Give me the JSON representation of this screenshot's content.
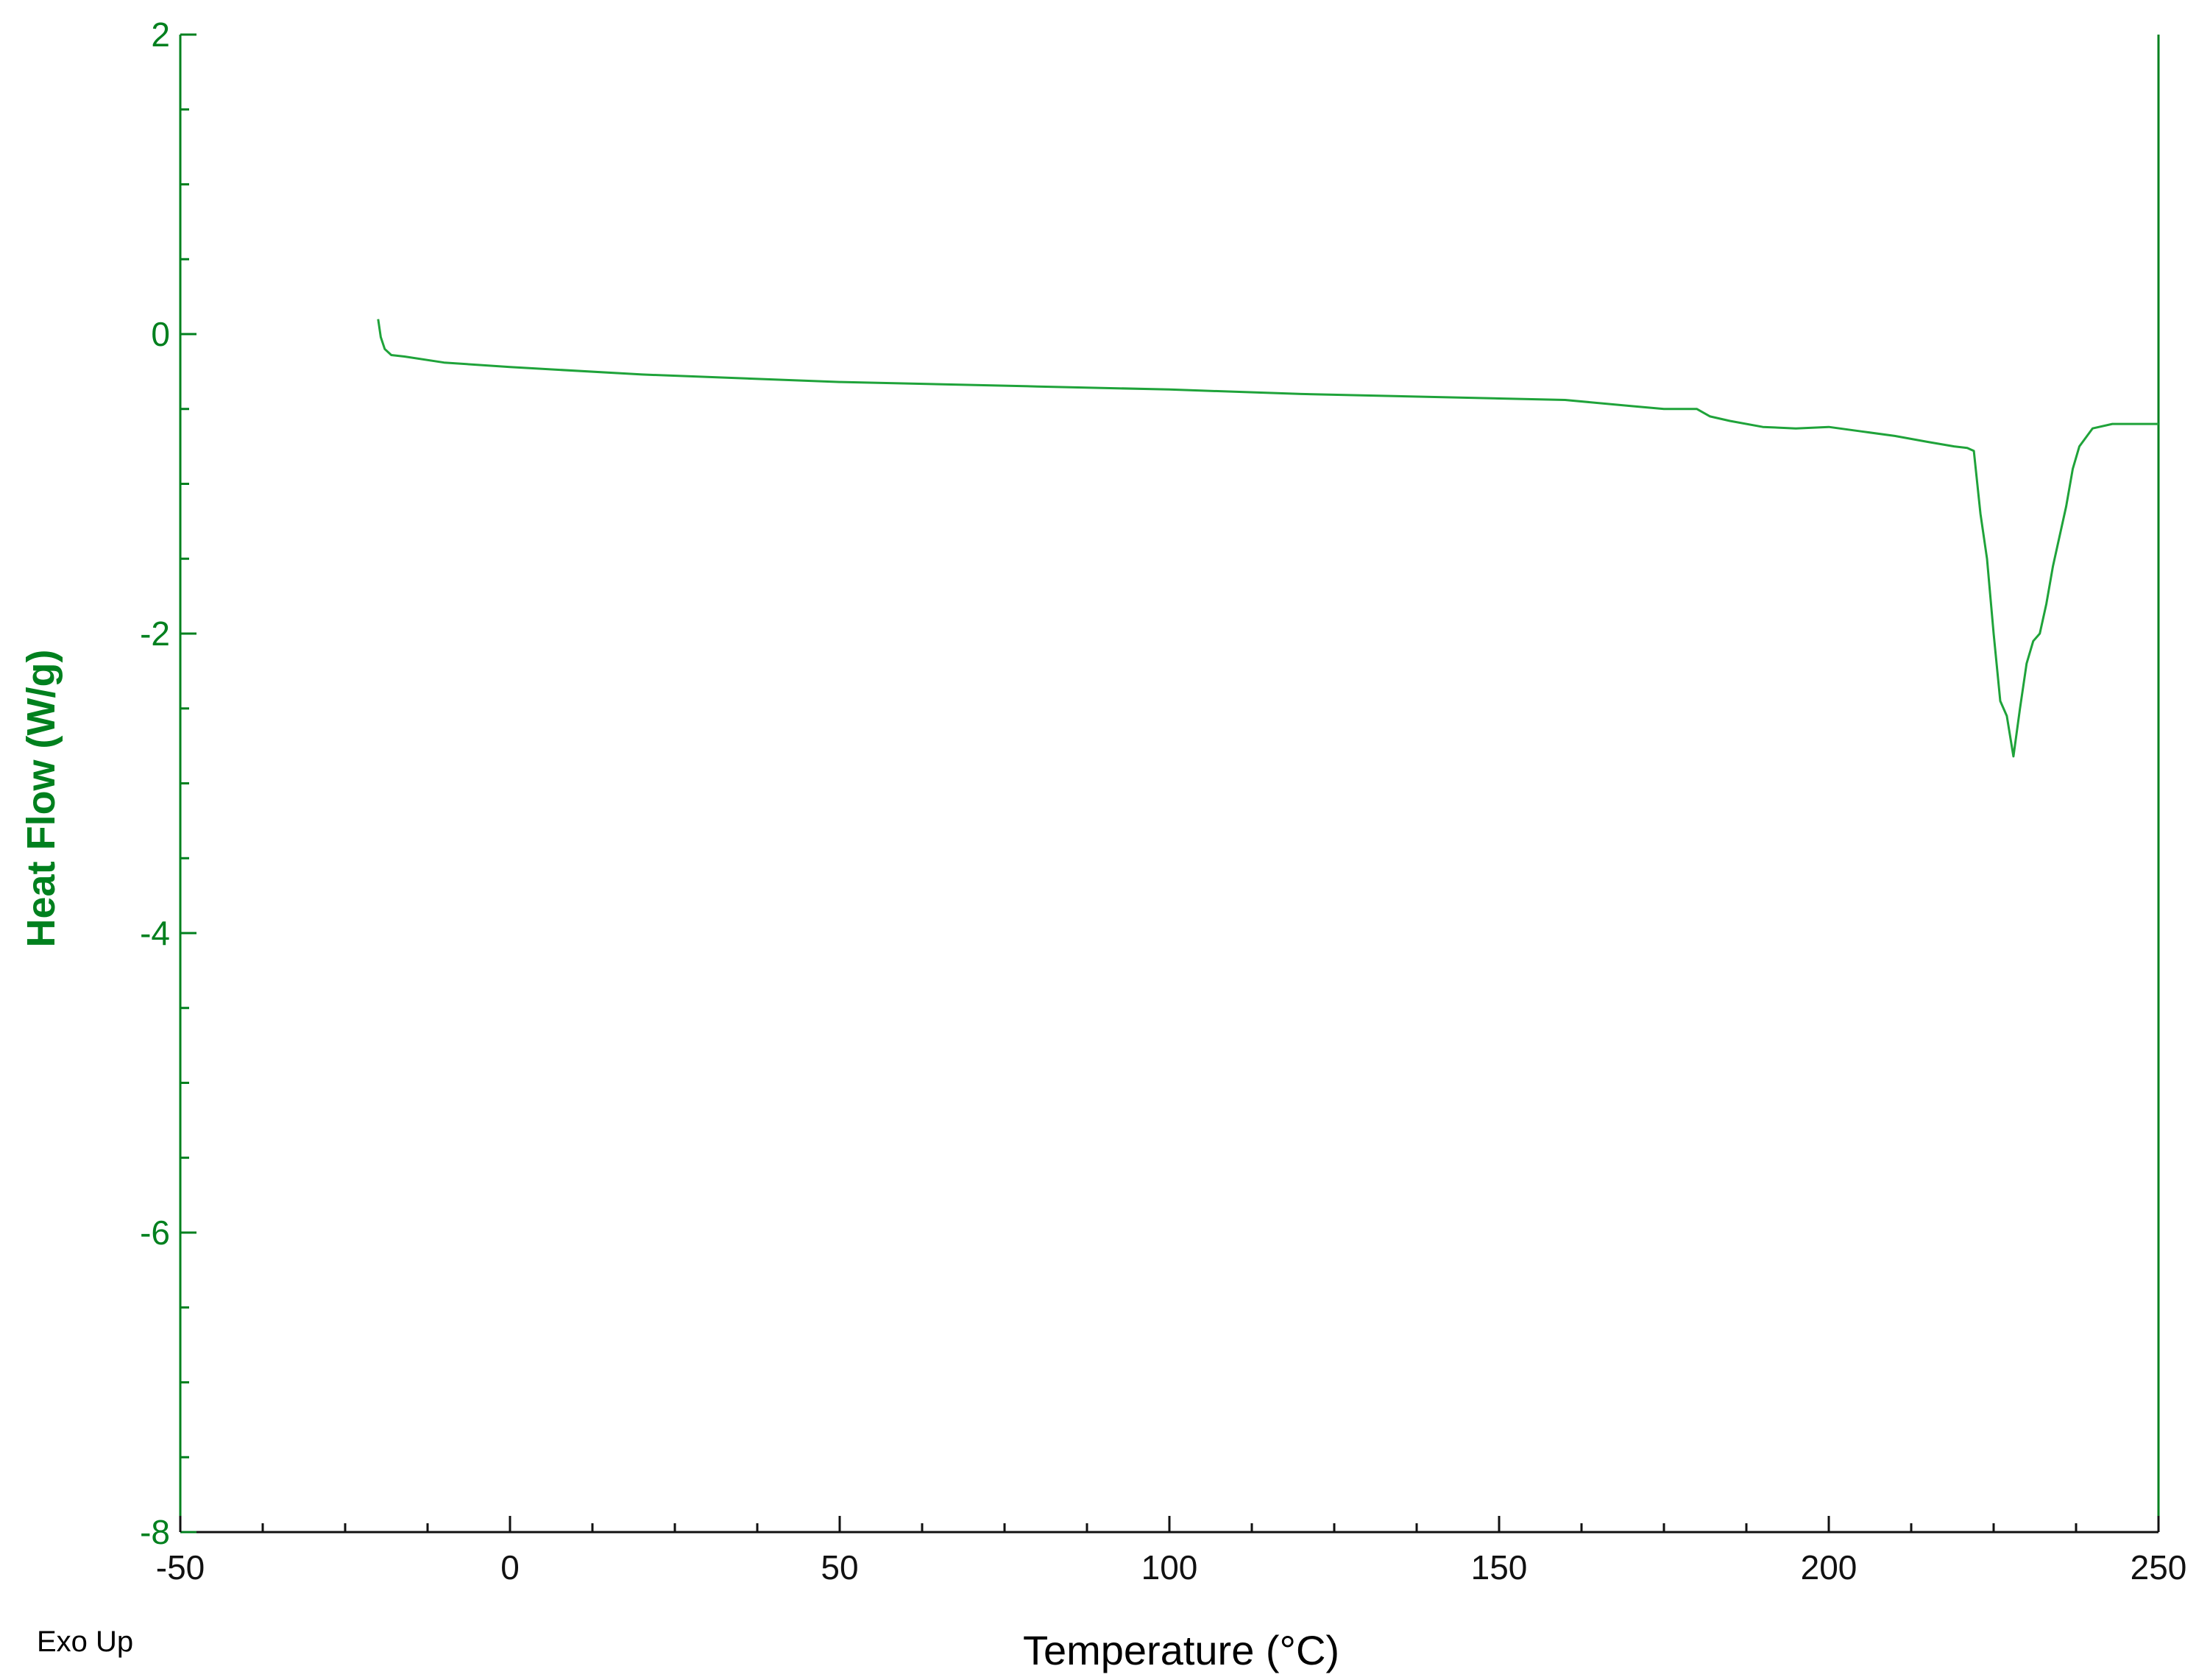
{
  "chart_data": {
    "type": "line",
    "xlabel": "Temperature (°C)",
    "ylabel": "Heat Flow (W/g)",
    "annotation": "Exo Up",
    "xlim": [
      -50,
      250
    ],
    "ylim": [
      -8,
      2
    ],
    "x_ticks": [
      "-50",
      "0",
      "50",
      "100",
      "150",
      "200",
      "250"
    ],
    "y_ticks": [
      "2",
      "0",
      "-2",
      "-4",
      "-6",
      "-8"
    ],
    "grid": false,
    "colors": {
      "series": "#1fa33a",
      "y_axis": "#00801e",
      "x_axis": "#111111"
    },
    "series": [
      {
        "x": [
          -20,
          -19.6,
          -19,
          -18,
          -16,
          -10,
          0,
          20,
          50,
          80,
          100,
          120,
          150,
          160,
          170,
          175,
          180,
          182,
          185,
          190,
          195,
          200,
          205,
          210,
          215,
          219,
          221,
          222,
          223,
          224,
          225,
          226,
          227,
          228,
          229,
          230,
          231,
          232,
          233,
          234,
          235,
          236,
          237,
          238,
          240,
          243,
          246,
          250
        ],
        "y": [
          0.1,
          -0.02,
          -0.1,
          -0.14,
          -0.15,
          -0.19,
          -0.22,
          -0.27,
          -0.32,
          -0.35,
          -0.37,
          -0.4,
          -0.43,
          -0.44,
          -0.48,
          -0.5,
          -0.5,
          -0.55,
          -0.58,
          -0.62,
          -0.63,
          -0.62,
          -0.65,
          -0.68,
          -0.72,
          -0.75,
          -0.76,
          -0.78,
          -1.2,
          -1.5,
          -2.0,
          -2.45,
          -2.55,
          -2.82,
          -2.5,
          -2.2,
          -2.05,
          -2.0,
          -1.8,
          -1.55,
          -1.35,
          -1.15,
          -0.9,
          -0.75,
          -0.63,
          -0.6,
          -0.6,
          -0.6
        ]
      }
    ]
  }
}
